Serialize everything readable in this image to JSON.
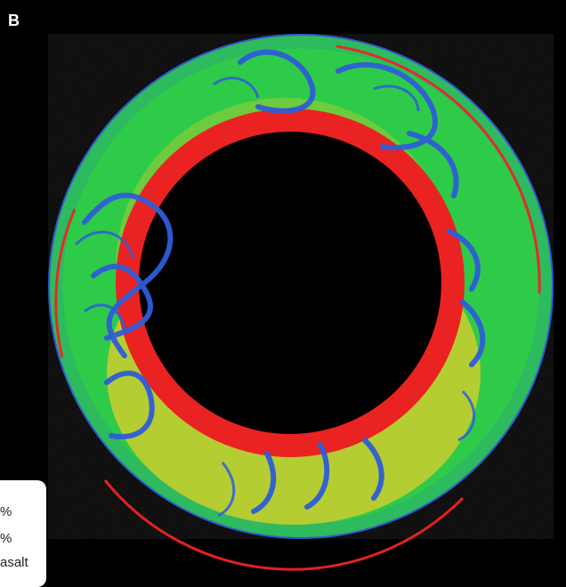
{
  "panel_label": "B",
  "legend_fragments": [
    "%",
    "%",
    "asalt"
  ],
  "colors": {
    "background": "#000000",
    "outer_band": "#2f5dd8",
    "green": "#2fcf4b",
    "yellow": "#e7d22a",
    "red": "#ef2323",
    "inner_hole": "#000000"
  }
}
